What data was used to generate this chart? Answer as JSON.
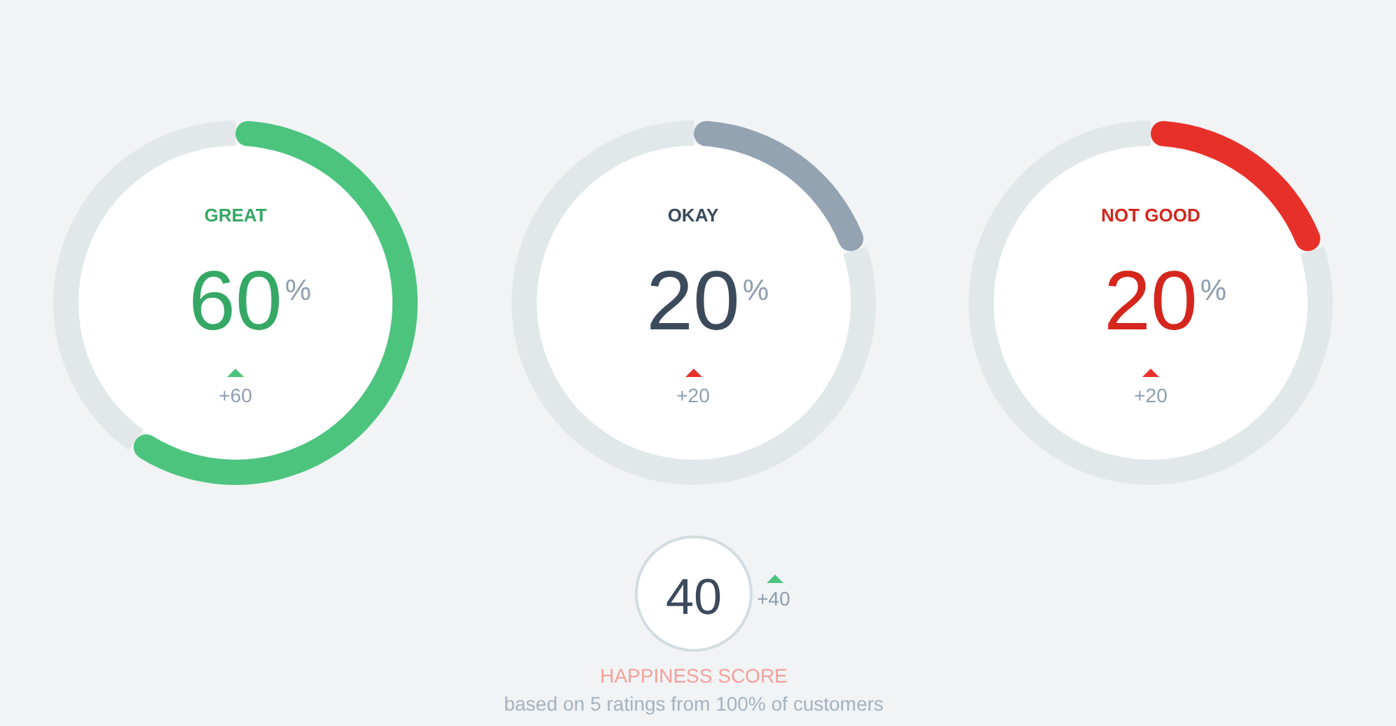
{
  "chart_data": [
    {
      "type": "donut",
      "title": "GREAT",
      "categories": [
        null,
        null
      ],
      "values": [
        60,
        40
      ],
      "colors": [
        "#4cc47e",
        "#e2e8ea"
      ],
      "value_labels": [
        "60%",
        null
      ],
      "annotations": [
        "+60"
      ]
    },
    {
      "type": "donut",
      "title": "OKAY",
      "categories": [
        null,
        null
      ],
      "values": [
        20,
        80
      ],
      "colors": [
        "#94a3b2",
        "#e2e8ea"
      ],
      "value_labels": [
        "20%",
        null
      ],
      "annotations": [
        "+20"
      ]
    },
    {
      "type": "donut",
      "title": "NOT GOOD",
      "categories": [
        null,
        null
      ],
      "values": [
        20,
        80
      ],
      "colors": [
        "#e8302a",
        "#e2e8ea"
      ],
      "value_labels": [
        "20%",
        null
      ],
      "annotations": [
        "+20"
      ]
    },
    {
      "type": "other",
      "title": "HAPPINESS SCORE",
      "subtitle": "based on 5 ratings from 100% of customers",
      "annotations": [
        "40",
        "+40"
      ]
    }
  ]
}
